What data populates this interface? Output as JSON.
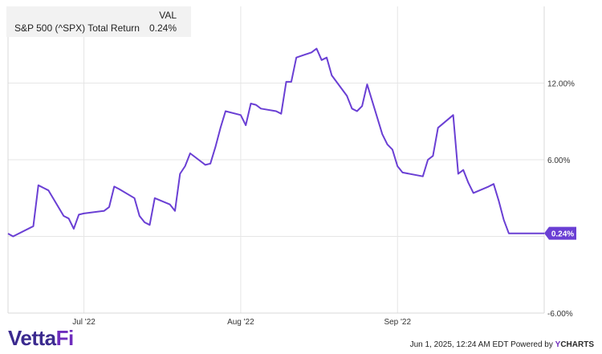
{
  "legend": {
    "header": "VAL",
    "series_name": "S&P 500 (^SPX) Total Return",
    "series_value": "0.24%"
  },
  "footer": {
    "logo_main": "Vetta",
    "logo_accent": "Fi",
    "timestamp": "Jun 1, 2025, 12:24 AM EDT",
    "powered_by": "Powered by",
    "brand_y": "Y",
    "brand_rest": "CHARTS"
  },
  "chart_data": {
    "type": "line",
    "title": "",
    "xlabel": "",
    "ylabel": "",
    "y_ticks": [
      "12.00%",
      "6.00%",
      "-6.00%"
    ],
    "y_tick_values": [
      12,
      6,
      -6
    ],
    "ylim": [
      -6,
      18
    ],
    "x_ticks": [
      "Jul '22",
      "Aug '22",
      "Sep '22"
    ],
    "x_tick_dates": [
      "2022-07-01",
      "2022-08-01",
      "2022-09-01"
    ],
    "grid": true,
    "line_color": "#6a3fd4",
    "end_label": "0.24%",
    "series": [
      {
        "name": "S&P 500 (^SPX) Total Return",
        "x": [
          "2022-06-16",
          "2022-06-17",
          "2022-06-21",
          "2022-06-22",
          "2022-06-23",
          "2022-06-24",
          "2022-06-27",
          "2022-06-28",
          "2022-06-29",
          "2022-06-30",
          "2022-07-01",
          "2022-07-05",
          "2022-07-06",
          "2022-07-07",
          "2022-07-08",
          "2022-07-11",
          "2022-07-12",
          "2022-07-13",
          "2022-07-14",
          "2022-07-15",
          "2022-07-18",
          "2022-07-19",
          "2022-07-20",
          "2022-07-21",
          "2022-07-22",
          "2022-07-25",
          "2022-07-26",
          "2022-07-27",
          "2022-07-28",
          "2022-07-29",
          "2022-08-01",
          "2022-08-02",
          "2022-08-03",
          "2022-08-04",
          "2022-08-05",
          "2022-08-08",
          "2022-08-09",
          "2022-08-10",
          "2022-08-11",
          "2022-08-12",
          "2022-08-15",
          "2022-08-16",
          "2022-08-17",
          "2022-08-18",
          "2022-08-19",
          "2022-08-22",
          "2022-08-23",
          "2022-08-24",
          "2022-08-25",
          "2022-08-26",
          "2022-08-29",
          "2022-08-30",
          "2022-08-31",
          "2022-09-01",
          "2022-09-02",
          "2022-09-06",
          "2022-09-07",
          "2022-09-08",
          "2022-09-09",
          "2022-09-12",
          "2022-09-13",
          "2022-09-14",
          "2022-09-15",
          "2022-09-16",
          "2022-09-19",
          "2022-09-20",
          "2022-09-21",
          "2022-09-22",
          "2022-09-23",
          "2022-09-26",
          "2022-09-27",
          "2022-09-28",
          "2022-09-29",
          "2022-09-30"
        ],
        "y": [
          0.22,
          0.0,
          0.8,
          4.0,
          3.8,
          3.6,
          1.6,
          1.4,
          0.6,
          1.7,
          1.8,
          2.0,
          2.3,
          3.9,
          3.7,
          3.0,
          1.6,
          1.1,
          0.9,
          3.0,
          2.5,
          2.0,
          4.9,
          5.5,
          6.5,
          5.6,
          5.7,
          7.0,
          8.5,
          9.8,
          9.5,
          8.7,
          10.4,
          10.3,
          10.0,
          9.8,
          9.6,
          12.1,
          12.1,
          14.0,
          14.4,
          14.7,
          13.8,
          14.0,
          12.6,
          11.0,
          10.0,
          9.8,
          10.2,
          11.9,
          8.0,
          7.2,
          6.8,
          5.5,
          5.0,
          4.7,
          6.0,
          6.3,
          8.5,
          9.5,
          4.9,
          5.2,
          4.2,
          3.4,
          3.9,
          4.1,
          2.8,
          1.3,
          0.24,
          0.24,
          0.24,
          0.24,
          0.24,
          0.24
        ]
      }
    ]
  }
}
